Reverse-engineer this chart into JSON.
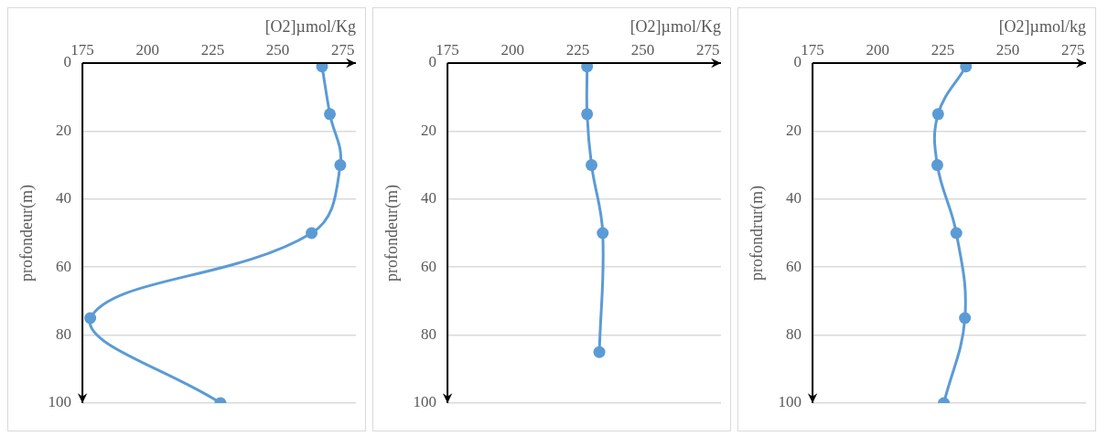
{
  "chart_data": [
    {
      "type": "line",
      "xlabel": "[O2]µmol/Kg",
      "ylabel": "profondeur(m)",
      "xlim": [
        175,
        280
      ],
      "xticks": [
        175,
        200,
        225,
        250,
        275
      ],
      "ylim": [
        100,
        0
      ],
      "yticks": [
        0,
        20,
        40,
        60,
        80,
        100
      ],
      "grid": "y",
      "marker": "circle",
      "series": [
        {
          "color": "#5b9bd5",
          "x": [
            267,
            270,
            274,
            263,
            178,
            228
          ],
          "values": [
            1,
            15,
            30,
            50,
            75,
            100
          ]
        }
      ]
    },
    {
      "type": "line",
      "xlabel": "[O2]µmol/Kg",
      "ylabel": "profondeur(m)",
      "xlim": [
        175,
        280
      ],
      "xticks": [
        175,
        200,
        225,
        250,
        275
      ],
      "ylim": [
        100,
        0
      ],
      "yticks": [
        0,
        20,
        40,
        60,
        80,
        100
      ],
      "grid": "y",
      "marker": "circle",
      "series": [
        {
          "color": "#5b9bd5",
          "x": [
            228.6,
            228.6,
            230.3,
            234.6,
            233.3
          ],
          "values": [
            1,
            15,
            30,
            50,
            85
          ]
        }
      ]
    },
    {
      "type": "line",
      "xlabel": "[O2]µmol/kg",
      "ylabel": "profondrur(m)",
      "xlim": [
        175,
        280
      ],
      "xticks": [
        175,
        200,
        225,
        250,
        275
      ],
      "ylim": [
        100,
        0
      ],
      "yticks": [
        0,
        20,
        40,
        60,
        80,
        100
      ],
      "grid": "y",
      "marker": "circle",
      "series": [
        {
          "color": "#5b9bd5",
          "x": [
            233.9,
            223.2,
            222.9,
            230.2,
            233.5,
            225.4
          ],
          "values": [
            1,
            15,
            30,
            50,
            75,
            100
          ]
        }
      ]
    }
  ]
}
